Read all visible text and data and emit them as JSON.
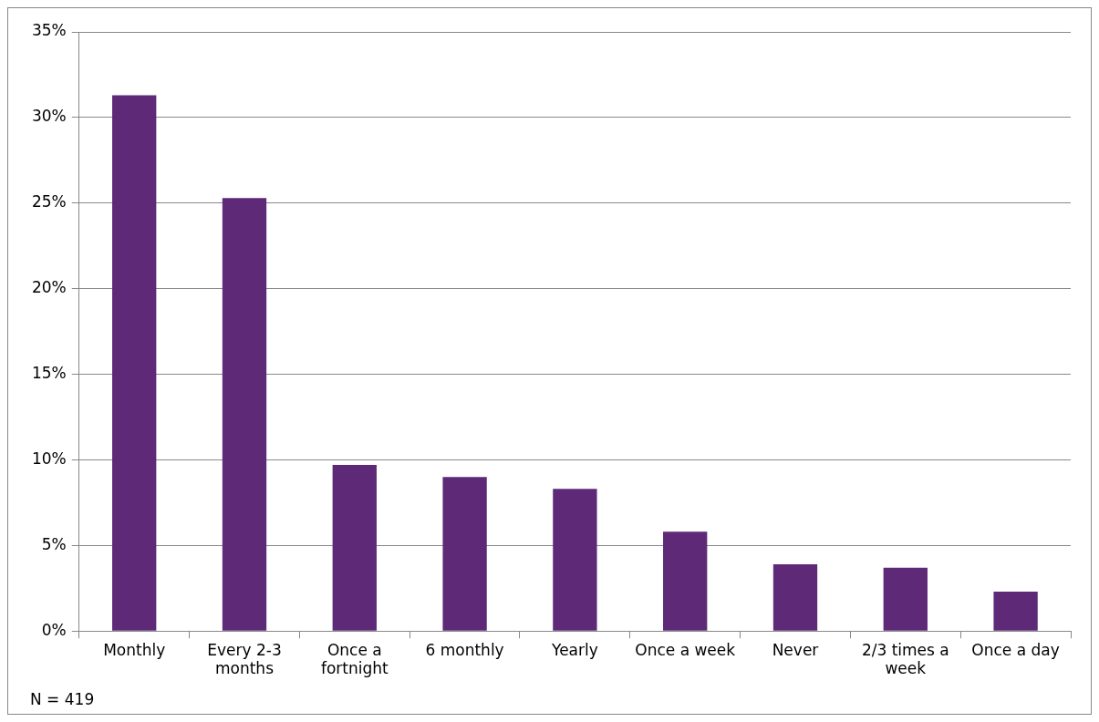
{
  "chart_data": {
    "type": "bar",
    "categories": [
      "Monthly",
      "Every 2-3 months",
      "Once a fortnight",
      "6 monthly",
      "Yearly",
      "Once a week",
      "Never",
      "2/3 times a week",
      "Once a day"
    ],
    "values": [
      31.3,
      25.3,
      9.7,
      9.0,
      8.3,
      5.8,
      3.9,
      3.7,
      2.3
    ],
    "color": "#5e2a78",
    "ylim": [
      0,
      35
    ],
    "yticks": [
      {
        "value": 0,
        "label": "0%"
      },
      {
        "value": 5,
        "label": "5%"
      },
      {
        "value": 10,
        "label": "10%"
      },
      {
        "value": 15,
        "label": "15%"
      },
      {
        "value": 20,
        "label": "20%"
      },
      {
        "value": 25,
        "label": "25%"
      },
      {
        "value": 30,
        "label": "30%"
      },
      {
        "value": 35,
        "label": "35%"
      }
    ],
    "grid": "y",
    "annotations": [
      "N = 419"
    ]
  }
}
